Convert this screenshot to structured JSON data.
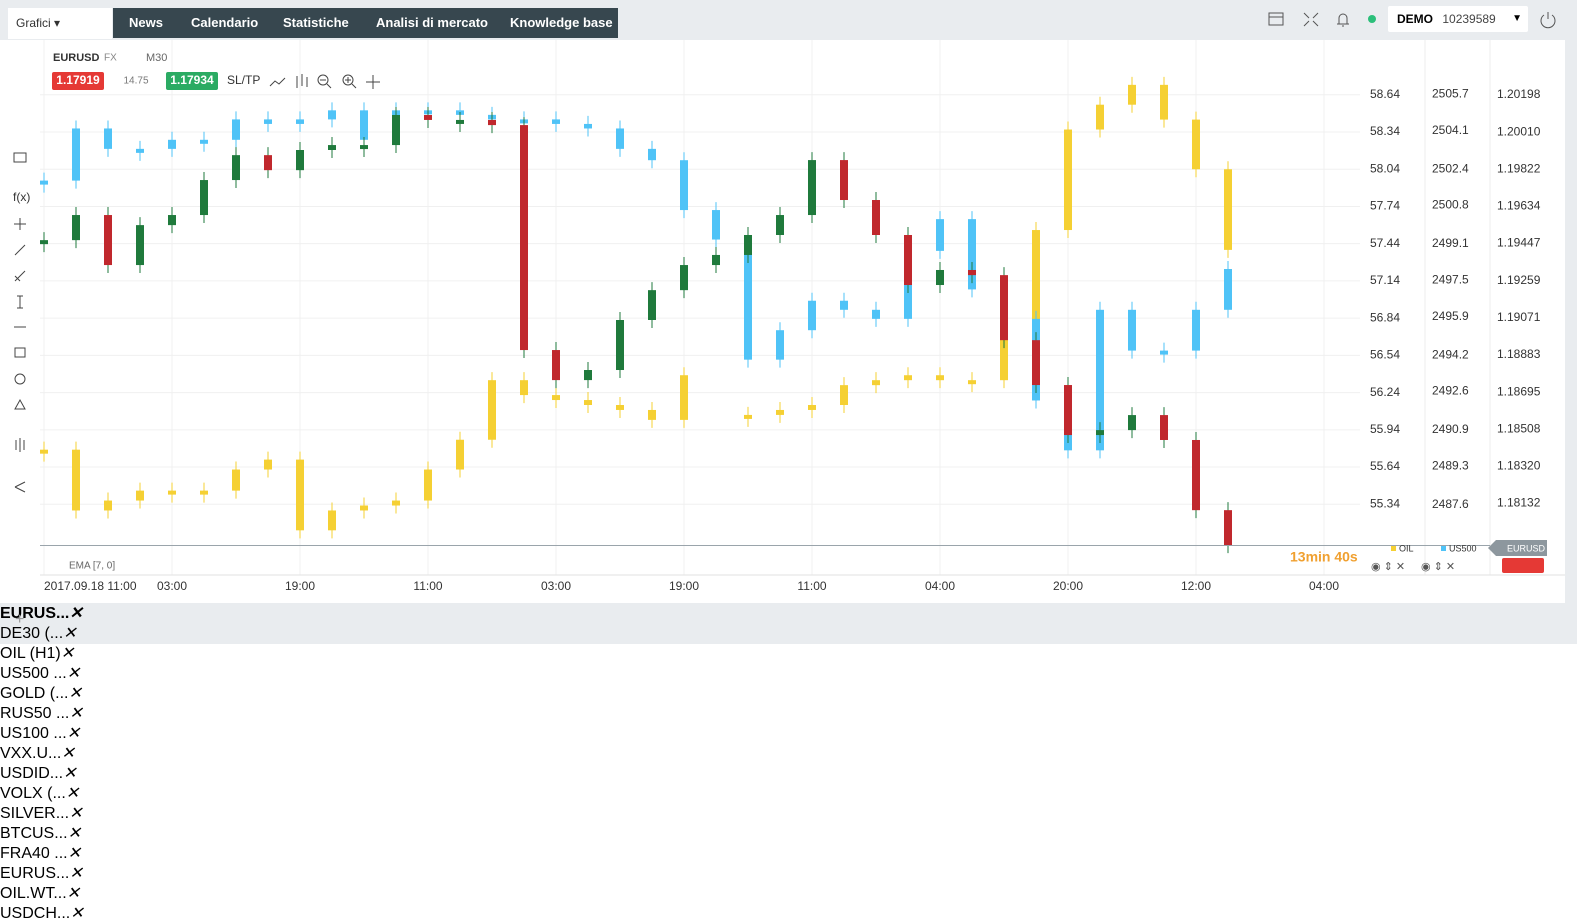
{
  "header": {
    "tab": "Grafici",
    "nav": [
      "News",
      "Calendario",
      "Statistiche",
      "Analisi di mercato",
      "Knowledge base"
    ],
    "account_type": "DEMO",
    "account_id": "10239589"
  },
  "instrument": {
    "symbol": "EURUSD",
    "market": "FX",
    "timeframe": "M30",
    "bid": 1.17919,
    "spread": 14.75,
    "ask": 1.17934,
    "sltp": "SL/TP",
    "indicator": "EMA [7, 0]",
    "countdown": "13min 40s"
  },
  "chart_data": {
    "type": "bar",
    "x_labels": [
      "2017.09.18 11:00",
      "03:00",
      "19:00",
      "11:00",
      "03:00",
      "19:00",
      "11:00",
      "04:00",
      "20:00",
      "12:00",
      "04:00"
    ],
    "ylim": [
      54.77,
      58.88
    ],
    "yticks": [
      58.64,
      58.34,
      58.04,
      57.74,
      57.44,
      57.14,
      56.84,
      56.54,
      56.24,
      55.94,
      55.64,
      55.34
    ],
    "y2lim": [
      2484.5,
      2507.0
    ],
    "y2ticks": [
      2505.7,
      2504.1,
      2502.4,
      2500.8,
      2499.1,
      2497.5,
      2495.9,
      2494.2,
      2492.6,
      2490.9,
      2489.3,
      2487.6
    ],
    "y3lim": [
      1.1777,
      1.2035
    ],
    "y3ticks": [
      1.20198,
      {
        "value": 1.2001,
        "label": "1.20010"
      },
      1.19822,
      1.19634,
      1.19447,
      1.19259,
      1.19071,
      1.18883,
      1.18695,
      1.18508,
      {
        "value": 1.1832,
        "label": "1.18320"
      },
      1.18132
    ],
    "grid": true,
    "series": [
      {
        "name": "OIL",
        "color": "#f5d033",
        "axis": "y",
        "values": [
          55.78,
          55.29,
          55.37,
          55.45,
          55.45,
          55.45,
          55.62,
          55.7,
          55.13,
          55.29,
          55.33,
          55.37,
          55.62,
          55.86,
          56.34,
          56.22,
          56.18,
          56.14,
          56.1,
          56.02,
          56.38,
          null,
          56.06,
          56.1,
          56.14,
          56.3,
          56.34,
          56.38,
          56.34,
          56.34,
          56.75,
          57.55,
          58.36,
          58.56,
          58.72,
          58.44,
          58.04,
          57.39
        ]
      },
      {
        "name": "US500",
        "color": "#4fc3f7",
        "axis": "y2",
        "values": [
          2501.9,
          2504.2,
          2503.3,
          2503.3,
          2503.7,
          2503.7,
          2504.6,
          2504.4,
          2504.6,
          2505.0,
          2503.7,
          2505.0,
          2505.0,
          2504.8,
          2504.6,
          2504.6,
          2504.4,
          2504.2,
          2503.3,
          2502.8,
          2500.6,
          2499.3,
          2494.0,
          2495.3,
          2496.6,
          2496.2,
          2495.8,
          2498.8,
          2500.2,
          2497.1,
          2495.8,
          2492.2,
          2490.0,
          2496.2,
          2494.4,
          2494.4,
          2496.2,
          2498.0
        ]
      },
      {
        "name": "EURUSD",
        "color": "#1f7a3c",
        "axis": "y3",
        "values": [
          1.19464,
          1.19591,
          1.19338,
          1.1954,
          1.19591,
          1.19768,
          1.19894,
          1.19818,
          1.1992,
          1.19945,
          1.19945,
          1.20097,
          1.20072,
          1.20072,
          1.20046,
          1.18908,
          1.18756,
          1.18807,
          1.1906,
          1.19211,
          1.19338,
          1.19389,
          1.1949,
          1.19591,
          1.19869,
          1.19667,
          1.1949,
          1.19237,
          1.19313,
          1.19287,
          1.18958,
          1.18731,
          1.18478,
          1.18503,
          1.18579,
          1.18453,
          1.18098,
          1.17921
        ]
      }
    ]
  },
  "tabs": [
    "EURUS...",
    "DE30 (...",
    "OIL (H1)",
    "US500 ...",
    "GOLD (...",
    "RUS50 ...",
    "US100 ...",
    "VXX.U...",
    "USDID...",
    "VOLX (...",
    "SILVER...",
    "BTCUS...",
    "FRA40 ...",
    "EURUS...",
    "OIL.WT...",
    "USDCH..."
  ]
}
